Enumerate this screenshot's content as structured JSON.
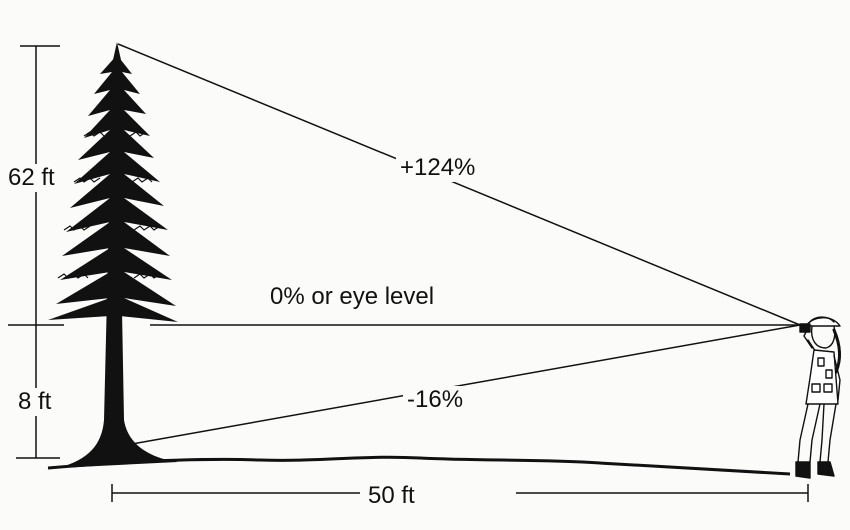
{
  "labels": {
    "upper_height": "62 ft",
    "lower_height": "8 ft",
    "top_angle": "+124%",
    "eye_level": "0% or eye level",
    "bottom_angle": "-16%",
    "distance": "50 ft"
  },
  "colors": {
    "ink": "#111111",
    "background": "#fbfbfa"
  },
  "icons": {
    "tree": "conifer-tree-icon",
    "person": "forester-with-clinometer-icon"
  }
}
